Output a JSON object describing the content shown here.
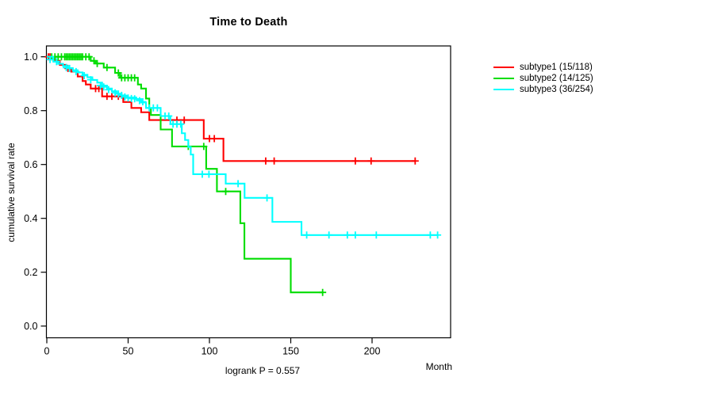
{
  "title": "Time to Death",
  "x_axis_label": "Month",
  "y_axis_label": "cumulative survival rate",
  "footnote": "logrank P = 0.557",
  "chart_data": {
    "type": "line",
    "variant": "kaplan-meier-step",
    "title": "Time to Death",
    "xlabel": "Month",
    "ylabel": "cumulative survival rate",
    "annotation": "logrank P = 0.557",
    "xlim": [
      0,
      248
    ],
    "ylim": [
      0,
      1.04
    ],
    "x_ticks": [
      0,
      50,
      100,
      150,
      200
    ],
    "y_ticks": [
      0.0,
      0.2,
      0.4,
      0.6,
      0.8,
      1.0
    ],
    "grid": false,
    "legend_position": "right-outside",
    "series": [
      {
        "name": "subtype1",
        "label": "subtype1 (15/118)",
        "events": 15,
        "n": 118,
        "color": "#ff0000",
        "steps": [
          [
            3,
            0.992
          ],
          [
            5,
            0.985
          ],
          [
            8,
            0.97
          ],
          [
            12,
            0.957
          ],
          [
            15,
            0.945
          ],
          [
            19,
            0.927
          ],
          [
            22,
            0.91
          ],
          [
            24,
            0.897
          ],
          [
            27,
            0.882
          ],
          [
            34,
            0.853
          ],
          [
            47,
            0.832
          ],
          [
            52,
            0.81
          ],
          [
            58,
            0.794
          ],
          [
            63,
            0.765
          ],
          [
            96.5,
            0.696
          ],
          [
            108.6,
            0.613
          ]
        ],
        "end": 226.5,
        "end_censor": true,
        "censors": [
          [
            1,
            1.0
          ],
          [
            2,
            1.0
          ],
          [
            13,
            0.957
          ],
          [
            30,
            0.882
          ],
          [
            32,
            0.882
          ],
          [
            37,
            0.853
          ],
          [
            40,
            0.853
          ],
          [
            44,
            0.853
          ],
          [
            80,
            0.765
          ],
          [
            84.5,
            0.765
          ],
          [
            100,
            0.696
          ],
          [
            103,
            0.696
          ],
          [
            134.6,
            0.613
          ],
          [
            139.8,
            0.613
          ],
          [
            189.7,
            0.613
          ],
          [
            199.4,
            0.613
          ]
        ]
      },
      {
        "name": "subtype2",
        "label": "subtype2 (14/125)",
        "events": 14,
        "n": 125,
        "color": "#00dd00",
        "steps": [
          [
            27,
            0.985
          ],
          [
            30,
            0.975
          ],
          [
            35,
            0.96
          ],
          [
            42,
            0.94
          ],
          [
            45,
            0.922
          ],
          [
            56,
            0.897
          ],
          [
            58,
            0.882
          ],
          [
            61,
            0.845
          ],
          [
            63,
            0.809
          ],
          [
            64,
            0.784
          ],
          [
            70,
            0.73
          ],
          [
            77,
            0.667
          ],
          [
            98,
            0.584
          ],
          [
            104.6,
            0.5
          ],
          [
            119,
            0.382
          ],
          [
            121.5,
            0.25
          ],
          [
            150,
            0.125
          ]
        ],
        "end": 169.6,
        "end_censor": true,
        "censors": [
          [
            3,
            1.0
          ],
          [
            5,
            1.0
          ],
          [
            7,
            1.0
          ],
          [
            9,
            1.0
          ],
          [
            11,
            1.0
          ],
          [
            12,
            1.0
          ],
          [
            13,
            1.0
          ],
          [
            14,
            1.0
          ],
          [
            15,
            1.0
          ],
          [
            16,
            1.0
          ],
          [
            17,
            1.0
          ],
          [
            18,
            1.0
          ],
          [
            19,
            1.0
          ],
          [
            20,
            1.0
          ],
          [
            21,
            1.0
          ],
          [
            22,
            1.0
          ],
          [
            24,
            1.0
          ],
          [
            26,
            1.0
          ],
          [
            29,
            0.985
          ],
          [
            31,
            0.975
          ],
          [
            37,
            0.96
          ],
          [
            44,
            0.94
          ],
          [
            46,
            0.922
          ],
          [
            48,
            0.922
          ],
          [
            50,
            0.922
          ],
          [
            52,
            0.922
          ],
          [
            54,
            0.922
          ],
          [
            87,
            0.667
          ],
          [
            96.5,
            0.667
          ],
          [
            110,
            0.5
          ]
        ]
      },
      {
        "name": "subtype3",
        "label": "subtype3 (36/254)",
        "events": 36,
        "n": 254,
        "color": "#00ffff",
        "steps": [
          [
            4,
            0.982
          ],
          [
            7,
            0.974
          ],
          [
            10,
            0.966
          ],
          [
            13,
            0.958
          ],
          [
            16,
            0.95
          ],
          [
            19,
            0.942
          ],
          [
            22,
            0.933
          ],
          [
            25,
            0.924
          ],
          [
            28,
            0.914
          ],
          [
            31,
            0.904
          ],
          [
            34,
            0.893
          ],
          [
            37,
            0.882
          ],
          [
            40,
            0.872
          ],
          [
            43,
            0.863
          ],
          [
            46,
            0.856
          ],
          [
            49,
            0.849
          ],
          [
            55,
            0.843
          ],
          [
            58,
            0.83
          ],
          [
            61,
            0.81
          ],
          [
            70,
            0.78
          ],
          [
            76,
            0.75
          ],
          [
            83,
            0.716
          ],
          [
            85,
            0.691
          ],
          [
            87,
            0.665
          ],
          [
            88.5,
            0.637
          ],
          [
            90,
            0.564
          ],
          [
            110,
            0.529
          ],
          [
            121.6,
            0.476
          ],
          [
            138.7,
            0.387
          ],
          [
            156.6,
            0.338
          ]
        ],
        "end": 240.3,
        "end_censor": true,
        "censors": [
          [
            2,
            0.99
          ],
          [
            6,
            0.982
          ],
          [
            12,
            0.96
          ],
          [
            14,
            0.957
          ],
          [
            18,
            0.945
          ],
          [
            23,
            0.93
          ],
          [
            27,
            0.915
          ],
          [
            33,
            0.893
          ],
          [
            35,
            0.888
          ],
          [
            38,
            0.878
          ],
          [
            42,
            0.866
          ],
          [
            44,
            0.862
          ],
          [
            46,
            0.857
          ],
          [
            48,
            0.851
          ],
          [
            50,
            0.847
          ],
          [
            52,
            0.845
          ],
          [
            54,
            0.844
          ],
          [
            57,
            0.837
          ],
          [
            59,
            0.833
          ],
          [
            63,
            0.81
          ],
          [
            65.5,
            0.81
          ],
          [
            68,
            0.81
          ],
          [
            72.7,
            0.78
          ],
          [
            75,
            0.78
          ],
          [
            77.6,
            0.75
          ],
          [
            80,
            0.75
          ],
          [
            82.4,
            0.75
          ],
          [
            95.6,
            0.564
          ],
          [
            99.7,
            0.564
          ],
          [
            117.6,
            0.529
          ],
          [
            135.4,
            0.476
          ],
          [
            159.8,
            0.338
          ],
          [
            173.5,
            0.338
          ],
          [
            184.8,
            0.338
          ],
          [
            189.7,
            0.338
          ],
          [
            202.6,
            0.338
          ],
          [
            235.8,
            0.338
          ]
        ]
      }
    ]
  }
}
